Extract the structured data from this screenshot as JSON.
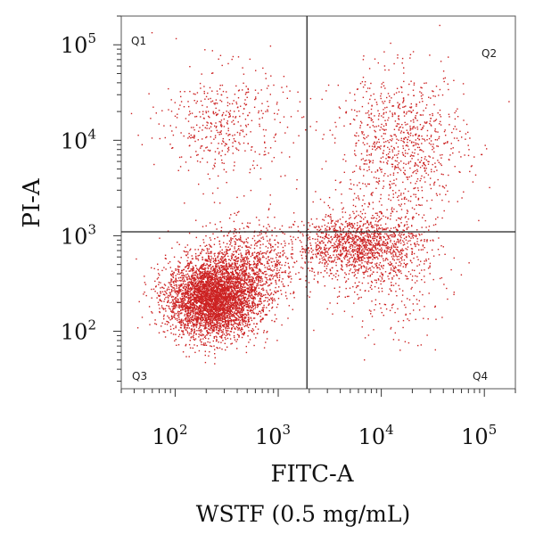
{
  "chart_data": {
    "type": "scatter",
    "xlabel": "FITC-A",
    "ylabel": "PI-A",
    "caption": "WSTF (0.5 mg/mL)",
    "xscale": "log",
    "yscale": "log",
    "xlim": [
      30,
      200000
    ],
    "ylim": [
      25,
      200000
    ],
    "x_ticks": [
      {
        "base": "10",
        "exp": "2",
        "value": 100
      },
      {
        "base": "10",
        "exp": "3",
        "value": 1000
      },
      {
        "base": "10",
        "exp": "4",
        "value": 10000
      },
      {
        "base": "10",
        "exp": "5",
        "value": 100000
      }
    ],
    "y_ticks": [
      {
        "base": "10",
        "exp": "2",
        "value": 100
      },
      {
        "base": "10",
        "exp": "3",
        "value": 1000
      },
      {
        "base": "10",
        "exp": "4",
        "value": 10000
      },
      {
        "base": "10",
        "exp": "5",
        "value": 100000
      }
    ],
    "gates": {
      "x": 1900,
      "y": 1100
    },
    "quadrants": [
      {
        "label": "Q1",
        "position": "top-left"
      },
      {
        "label": "Q2",
        "position": "top-right"
      },
      {
        "label": "Q3",
        "position": "bottom-left"
      },
      {
        "label": "Q4",
        "position": "bottom-right"
      }
    ],
    "point_color": "#cc2222",
    "populations": [
      {
        "center": [
          230,
          220
        ],
        "spread": [
          0.22,
          0.2
        ],
        "count": 4200
      },
      {
        "center": [
          500,
          480
        ],
        "spread": [
          0.25,
          0.22
        ],
        "count": 900
      },
      {
        "center": [
          6000,
          800
        ],
        "spread": [
          0.3,
          0.16
        ],
        "count": 1300
      },
      {
        "center": [
          15000,
          9000
        ],
        "spread": [
          0.32,
          0.38
        ],
        "count": 900
      },
      {
        "center": [
          300,
          15000
        ],
        "spread": [
          0.3,
          0.3
        ],
        "count": 450
      },
      {
        "center": [
          12000,
          400
        ],
        "spread": [
          0.28,
          0.35
        ],
        "count": 300
      }
    ]
  }
}
